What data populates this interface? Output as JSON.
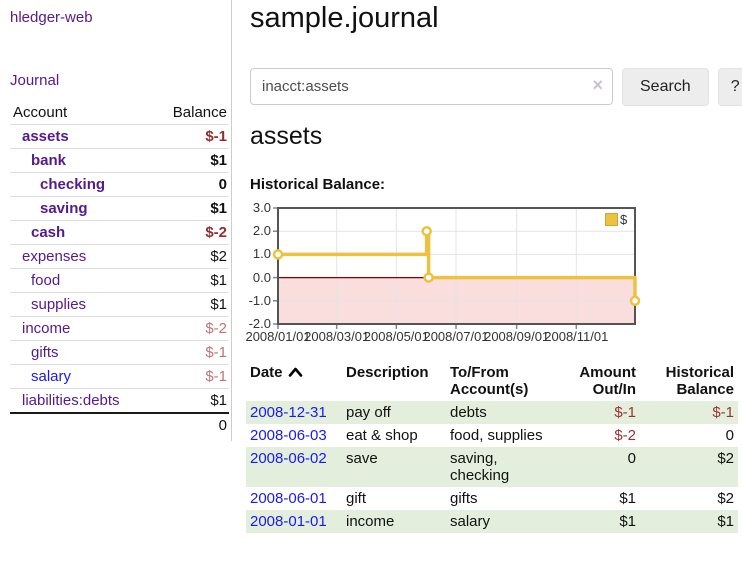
{
  "app": {
    "brand": "hledger-web"
  },
  "colors": {
    "link_purple": "#551a8b",
    "link_blue": "#1a1aee",
    "negative_strong": "#962c2c",
    "negative_soft": "#bd7575",
    "negative_register": "#993333",
    "row_green": "#e3efdc",
    "series_gold": "#edc240",
    "negative_zone_pink": "#fadddd",
    "zero_line_red": "#8b0000",
    "plot_border_gray": "#545454",
    "grid_gray": "#e4e4e4"
  },
  "sidebar": {
    "journal_label": "Journal",
    "accounts_table": {
      "headers": [
        "Account",
        "Balance"
      ],
      "rows": [
        {
          "name": "assets",
          "balance": "$-1",
          "indent": 0,
          "bold": true,
          "balance_tone": "negative_strong",
          "link_tone": "purple"
        },
        {
          "name": "bank",
          "balance": "$1",
          "indent": 1,
          "bold": true,
          "balance_tone": "normal",
          "link_tone": "purple"
        },
        {
          "name": "checking",
          "balance": "0",
          "indent": 2,
          "bold": true,
          "balance_tone": "normal",
          "link_tone": "purple"
        },
        {
          "name": "saving",
          "balance": "$1",
          "indent": 2,
          "bold": true,
          "balance_tone": "normal",
          "link_tone": "purple"
        },
        {
          "name": "cash",
          "balance": "$-2",
          "indent": 1,
          "bold": true,
          "balance_tone": "negative_strong",
          "link_tone": "purple"
        },
        {
          "name": "expenses",
          "balance": "$2",
          "indent": 0,
          "bold": false,
          "balance_tone": "normal",
          "link_tone": "purple"
        },
        {
          "name": "food",
          "balance": "$1",
          "indent": 1,
          "bold": false,
          "balance_tone": "normal",
          "link_tone": "purple"
        },
        {
          "name": "supplies",
          "balance": "$1",
          "indent": 1,
          "bold": false,
          "balance_tone": "normal",
          "link_tone": "purple"
        },
        {
          "name": "income",
          "balance": "$-2",
          "indent": 0,
          "bold": false,
          "balance_tone": "negative_soft",
          "link_tone": "purple"
        },
        {
          "name": "gifts",
          "balance": "$-1",
          "indent": 1,
          "bold": false,
          "balance_tone": "negative_soft",
          "link_tone": "purple"
        },
        {
          "name": "salary",
          "balance": "$-1",
          "indent": 1,
          "bold": false,
          "balance_tone": "negative_soft",
          "link_tone": "blue"
        },
        {
          "name": "liabilities:debts",
          "balance": "$1",
          "indent": 0,
          "bold": false,
          "balance_tone": "normal",
          "link_tone": "purple"
        }
      ],
      "total": "0"
    }
  },
  "main": {
    "title": "sample.journal",
    "search": {
      "value": "inacct:assets",
      "clear_icon": "×",
      "button_label": "Search",
      "help_label": "?"
    },
    "account_heading": "assets",
    "chart_label": "Historical Balance:"
  },
  "chart_data": {
    "type": "line",
    "step": true,
    "title": "Historical Balance:",
    "legend": {
      "label": "$",
      "position": "top-right"
    },
    "x_range": [
      "2008-01-01",
      "2008-12-31"
    ],
    "ylim": [
      -2,
      3
    ],
    "y_ticks": [
      3,
      2,
      1,
      0,
      -1,
      -2
    ],
    "y_tick_labels": [
      "3.0",
      "2.0",
      "1.0",
      "0.0",
      "-1.0",
      "-2.0"
    ],
    "x_tick_dates": [
      "2008-01-01",
      "2008-03-01",
      "2008-05-01",
      "2008-07-01",
      "2008-09-01",
      "2008-11-01"
    ],
    "x_tick_labels": [
      "2008/01/01",
      "2008/03/01",
      "2008/05/01",
      "2008/07/01",
      "2008/09/01",
      "2008/11/01"
    ],
    "grid": true,
    "series": [
      {
        "name": "$",
        "points": [
          {
            "date": "2008-01-01",
            "value": 1
          },
          {
            "date": "2008-06-01",
            "value": 2
          },
          {
            "date": "2008-06-03",
            "value": 0
          },
          {
            "date": "2008-12-31",
            "value": -1
          }
        ]
      }
    ],
    "negative_region": {
      "from": 0,
      "to": -2
    }
  },
  "register": {
    "headers": {
      "date": "Date",
      "description": "Description",
      "accounts": "To/From Account(s)",
      "amount": "Amount Out/In",
      "balance": "Historical Balance"
    },
    "sort": {
      "column": "date",
      "direction": "ascending"
    },
    "rows": [
      {
        "date": "2008-12-31",
        "description": "pay off",
        "accounts": "debts",
        "amount": "$-1",
        "balance": "$-1",
        "amount_negative": true,
        "balance_negative": true,
        "shaded": true
      },
      {
        "date": "2008-06-03",
        "description": "eat & shop",
        "accounts": "food, supplies",
        "amount": "$-2",
        "balance": "0",
        "amount_negative": true,
        "balance_negative": false,
        "shaded": false
      },
      {
        "date": "2008-06-02",
        "description": "save",
        "accounts": "saving, checking",
        "amount": "0",
        "balance": "$2",
        "amount_negative": false,
        "balance_negative": false,
        "shaded": true
      },
      {
        "date": "2008-06-01",
        "description": "gift",
        "accounts": "gifts",
        "amount": "$1",
        "balance": "$2",
        "amount_negative": false,
        "balance_negative": false,
        "shaded": false
      },
      {
        "date": "2008-01-01",
        "description": "income",
        "accounts": "salary",
        "amount": "$1",
        "balance": "$1",
        "amount_negative": false,
        "balance_negative": false,
        "shaded": true
      }
    ]
  }
}
